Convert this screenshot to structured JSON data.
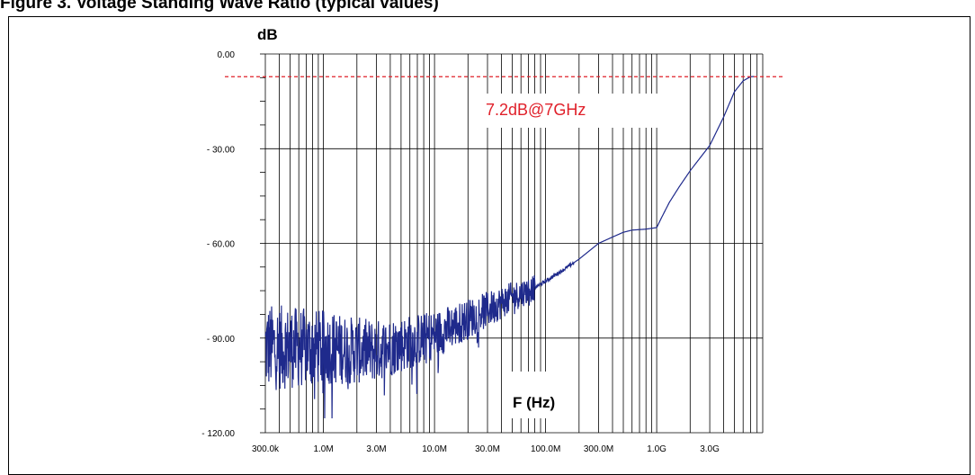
{
  "figure_caption": "Figure 3. Voltage Standing Wave Ratio (typical values)",
  "chart_data": {
    "type": "line",
    "title": "",
    "xlabel": "F (Hz)",
    "ylabel": "dB",
    "x_scale": "log",
    "xlim": [
      300000,
      9000000000
    ],
    "ylim": [
      -120,
      0
    ],
    "grid": true,
    "x_ticks": [
      {
        "value": 300000,
        "label": "300.0k"
      },
      {
        "value": 1000000,
        "label": "1.0M"
      },
      {
        "value": 3000000,
        "label": "3.0M"
      },
      {
        "value": 10000000,
        "label": "10.0M"
      },
      {
        "value": 30000000,
        "label": "30.0M"
      },
      {
        "value": 100000000,
        "label": "100.0M"
      },
      {
        "value": 300000000,
        "label": "300.0M"
      },
      {
        "value": 1000000000,
        "label": "1.0G"
      },
      {
        "value": 3000000000,
        "label": "3.0G"
      }
    ],
    "y_ticks": [
      {
        "value": 0,
        "label": "0.00"
      },
      {
        "value": -30,
        "label": "- 30.00"
      },
      {
        "value": -60,
        "label": "- 60.00"
      },
      {
        "value": -90,
        "label": "- 90.00"
      },
      {
        "value": -120,
        "label": "- 120.00"
      }
    ],
    "series": [
      {
        "color": "#1f2a8c",
        "noise_below_hz": 80000000,
        "points": [
          [
            300000,
            -93
          ],
          [
            500000,
            -93
          ],
          [
            800000,
            -93
          ],
          [
            1000000,
            -93
          ],
          [
            2000000,
            -94
          ],
          [
            3000000,
            -94
          ],
          [
            5000000,
            -92
          ],
          [
            10000000,
            -89
          ],
          [
            20000000,
            -84
          ],
          [
            30000000,
            -81
          ],
          [
            50000000,
            -77
          ],
          [
            80000000,
            -74
          ],
          [
            100000000,
            -72
          ],
          [
            150000000,
            -68
          ],
          [
            200000000,
            -65
          ],
          [
            300000000,
            -60
          ],
          [
            400000000,
            -58
          ],
          [
            500000000,
            -56.5
          ],
          [
            600000000,
            -55.8
          ],
          [
            800000000,
            -55.5
          ],
          [
            1000000000,
            -55
          ],
          [
            1100000000,
            -52
          ],
          [
            1300000000,
            -47
          ],
          [
            1600000000,
            -42
          ],
          [
            2000000000,
            -37
          ],
          [
            3000000000,
            -29
          ],
          [
            4000000000,
            -20
          ],
          [
            5000000000,
            -12
          ],
          [
            6000000000,
            -8.5
          ],
          [
            7000000000,
            -7.2
          ],
          [
            9000000000,
            -7
          ]
        ]
      }
    ],
    "reference_line": {
      "value": -7.2,
      "color": "#e0202a",
      "style": "dashed"
    },
    "annotation": {
      "text": "7.2dB@7GHz",
      "color": "#e0202a",
      "x": 1000000000,
      "y": -18
    }
  }
}
